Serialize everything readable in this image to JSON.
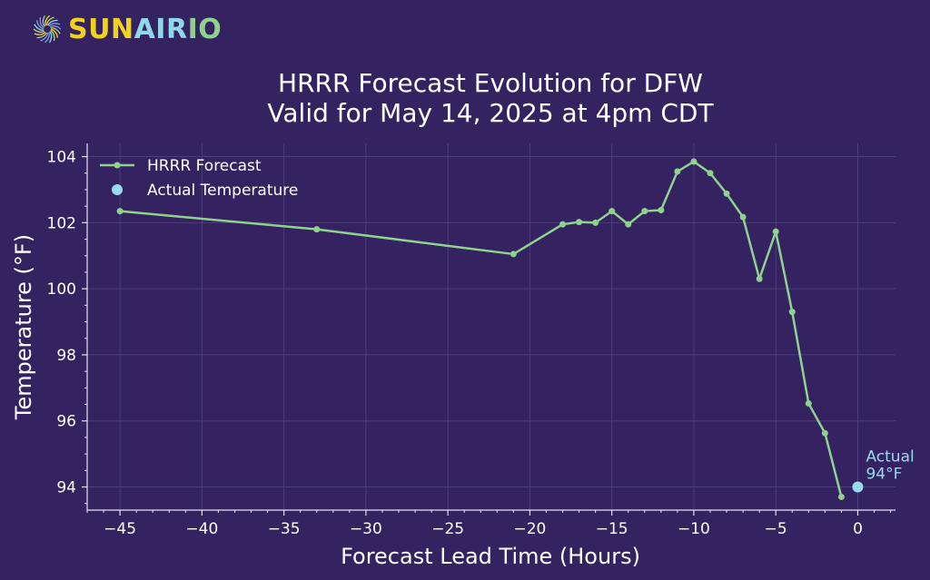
{
  "brand": {
    "name_part1": "SUN",
    "name_part2": "AIR",
    "name_part3": "IO",
    "color_sun": "#f2d31b",
    "color_air": "#8fd8ea",
    "color_io": "#8fd28e"
  },
  "colors": {
    "background": "#352260",
    "grid": "#4d3d7a",
    "axis": "#e6e1f0",
    "text": "#ffffff",
    "forecast_line": "#8fd28e",
    "actual_point": "#97dcee"
  },
  "chart_data": {
    "type": "line",
    "title": "HRRR Forecast Evolution for DFW",
    "subtitle": "Valid for May 14, 2025 at 4pm CDT",
    "xlabel": "Forecast Lead Time (Hours)",
    "ylabel": "Temperature (°F)",
    "xlim": [
      -47,
      2.3
    ],
    "ylim": [
      93.3,
      104.4
    ],
    "x_ticks": [
      -45,
      -40,
      -35,
      -30,
      -25,
      -20,
      -15,
      -10,
      -5,
      0
    ],
    "x_tick_labels": [
      "−45",
      "−40",
      "−35",
      "−30",
      "−25",
      "−20",
      "−15",
      "−10",
      "−5",
      "0"
    ],
    "y_ticks": [
      94,
      96,
      98,
      100,
      102,
      104
    ],
    "y_tick_labels": [
      "94",
      "96",
      "98",
      "100",
      "102",
      "104"
    ],
    "grid": true,
    "legend_position": "top-left",
    "series": [
      {
        "name": "HRRR Forecast",
        "x": [
          -45,
          -33,
          -21,
          -18,
          -17,
          -16,
          -15,
          -14,
          -13,
          -12,
          -11,
          -10,
          -9,
          -8,
          -7,
          -6,
          -5,
          -4,
          -3,
          -2,
          -1
        ],
        "y": [
          102.35,
          101.8,
          101.05,
          101.95,
          102.02,
          102.0,
          102.35,
          101.95,
          102.35,
          102.38,
          103.55,
          103.85,
          103.5,
          102.88,
          102.17,
          100.3,
          101.73,
          99.3,
          96.53,
          95.63,
          93.7
        ]
      },
      {
        "name": "Actual Temperature",
        "x": [
          0
        ],
        "y": [
          94
        ]
      }
    ],
    "annotation": {
      "line1": "Actual",
      "line2": "94°F",
      "x": 0,
      "y": 94
    }
  }
}
